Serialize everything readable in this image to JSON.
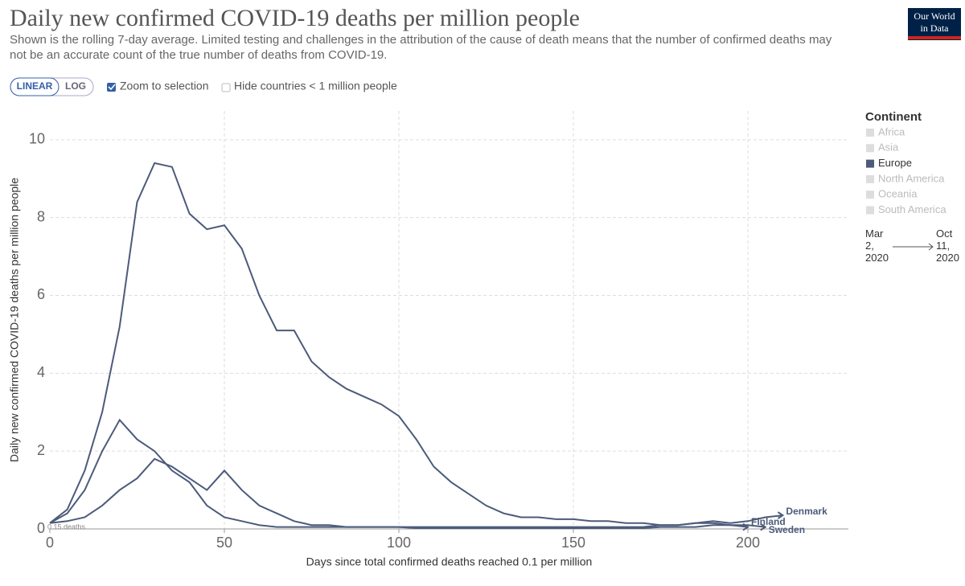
{
  "header": {
    "title": "Daily new confirmed COVID-19 deaths per million people",
    "subtitle": "Shown is the rolling 7-day average. Limited testing and challenges in the attribution of the cause of death means that the number of confirmed deaths may not be an accurate count of the true number of deaths from COVID-19.",
    "logo": [
      "Our World",
      "in Data"
    ]
  },
  "controls": {
    "scale": [
      "LINEAR",
      "LOG"
    ],
    "zoom": "Zoom to selection",
    "hide": "Hide countries < 1 million people"
  },
  "legend": {
    "title": "Continent",
    "items": [
      "Africa",
      "Asia",
      "Europe",
      "North America",
      "Oceania",
      "South America"
    ],
    "highlighted": "Europe",
    "active_color": "#4c5b7a",
    "inactive_color": "#dddddd"
  },
  "timeline": {
    "start": "Mar 2, 2020",
    "end": "Oct 11, 2020"
  },
  "chart_data": {
    "type": "line",
    "xlabel": "Days since total confirmed deaths reached 0.1 per million",
    "ylabel": "Daily new confirmed COVID-19 deaths per million people",
    "annotation": "0.15 deaths",
    "xlim": [
      0,
      228.8
    ],
    "xticks": [
      0,
      50,
      100,
      150,
      200
    ],
    "ylim": [
      0,
      10.74
    ],
    "yticks": [
      0,
      2,
      4,
      6,
      8,
      10
    ],
    "grid": true,
    "x": [
      0,
      5,
      10,
      15,
      20,
      25,
      30,
      35,
      40,
      45,
      50,
      55,
      60,
      65,
      70,
      75,
      80,
      85,
      90,
      95,
      100,
      105,
      110,
      115,
      120,
      125,
      130,
      135,
      140,
      145,
      150,
      155,
      160,
      165,
      170,
      175,
      180,
      185,
      190,
      195,
      200,
      205,
      210
    ],
    "series": [
      {
        "name": "Sweden",
        "color": "#4c5b7a",
        "values": [
          0.15,
          0.5,
          1.5,
          3.0,
          5.2,
          8.4,
          9.4,
          9.3,
          8.1,
          7.7,
          7.8,
          7.2,
          6.0,
          5.1,
          5.1,
          4.3,
          3.9,
          3.6,
          3.4,
          3.2,
          2.9,
          2.3,
          1.6,
          1.2,
          0.9,
          0.6,
          0.4,
          0.3,
          0.3,
          0.25,
          0.25,
          0.2,
          0.2,
          0.15,
          0.15,
          0.1,
          0.1,
          0.15,
          0.15,
          0.1,
          0.1,
          0.05,
          null
        ]
      },
      {
        "name": "Denmark",
        "color": "#4c5b7a",
        "values": [
          0.15,
          0.4,
          1.0,
          2.0,
          2.8,
          2.3,
          2.0,
          1.5,
          1.2,
          0.6,
          0.3,
          0.2,
          0.1,
          0.05,
          0.05,
          0.05,
          0.05,
          0.05,
          0.05,
          0.05,
          0.05,
          0.05,
          0.05,
          0.05,
          0.05,
          0.05,
          0.05,
          0.05,
          0.05,
          0.05,
          0.05,
          0.05,
          0.05,
          0.05,
          0.05,
          0.1,
          0.1,
          0.15,
          0.2,
          0.15,
          0.2,
          0.3,
          0.35
        ]
      },
      {
        "name": "Finland",
        "color": "#4c5b7a",
        "values": [
          0.15,
          0.2,
          0.3,
          0.6,
          1.0,
          1.3,
          1.8,
          1.6,
          1.3,
          1.0,
          1.5,
          1.0,
          0.6,
          0.4,
          0.2,
          0.1,
          0.1,
          0.05,
          0.05,
          0.05,
          0.05,
          0.02,
          0.02,
          0.02,
          0.02,
          0.02,
          0.02,
          0.02,
          0.02,
          0.02,
          0.02,
          0.02,
          0.02,
          0.02,
          0.02,
          0.05,
          0.05,
          0.05,
          0.1,
          0.1,
          0.05,
          null,
          null
        ]
      }
    ]
  }
}
